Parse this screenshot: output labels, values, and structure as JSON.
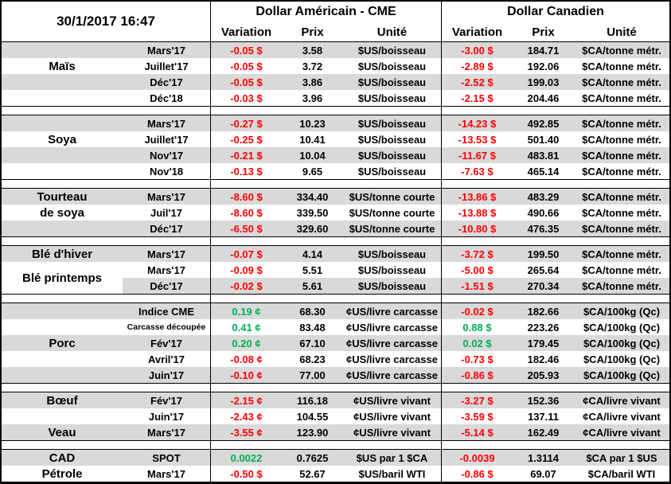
{
  "header": {
    "datetime": "30/1/2017 16:47",
    "usd_group": "Dollar Américain - CME",
    "cad_group": "Dollar Canadien",
    "col_variation": "Variation",
    "col_prix": "Prix",
    "col_unite": "Unité"
  },
  "colors": {
    "positive": "#00B050",
    "negative": "#FF0000",
    "stripe": "#D9D9D9",
    "border": "#000000"
  },
  "sections": [
    {
      "id": "mais",
      "labels": [
        {
          "text": "Maïs",
          "row": 1,
          "span": 1
        }
      ],
      "rows": [
        {
          "month": "Mars'17",
          "us_var": "-0.05 $",
          "us_trend": "down",
          "us_prix": "3.58",
          "us_unit": "$US/boisseau",
          "ca_var": "-3.00 $",
          "ca_trend": "down",
          "ca_prix": "184.71",
          "ca_unit": "$CA/tonne métr."
        },
        {
          "month": "Juillet'17",
          "us_var": "-0.05 $",
          "us_trend": "down",
          "us_prix": "3.72",
          "us_unit": "$US/boisseau",
          "ca_var": "-2.89 $",
          "ca_trend": "down",
          "ca_prix": "192.06",
          "ca_unit": "$CA/tonne métr."
        },
        {
          "month": "Déc'17",
          "us_var": "-0.05 $",
          "us_trend": "down",
          "us_prix": "3.86",
          "us_unit": "$US/boisseau",
          "ca_var": "-2.52 $",
          "ca_trend": "down",
          "ca_prix": "199.03",
          "ca_unit": "$CA/tonne métr."
        },
        {
          "month": "Déc'18",
          "us_var": "-0.03 $",
          "us_trend": "down",
          "us_prix": "3.96",
          "us_unit": "$US/boisseau",
          "ca_var": "-2.15 $",
          "ca_trend": "down",
          "ca_prix": "204.46",
          "ca_unit": "$CA/tonne métr."
        }
      ]
    },
    {
      "id": "soya",
      "labels": [
        {
          "text": "Soya",
          "row": 1,
          "span": 1
        }
      ],
      "rows": [
        {
          "month": "Mars'17",
          "us_var": "-0.27 $",
          "us_trend": "down",
          "us_prix": "10.23",
          "us_unit": "$US/boisseau",
          "ca_var": "-14.23 $",
          "ca_trend": "down",
          "ca_prix": "492.85",
          "ca_unit": "$CA/tonne métr."
        },
        {
          "month": "Juillet'17",
          "us_var": "-0.25 $",
          "us_trend": "down",
          "us_prix": "10.41",
          "us_unit": "$US/boisseau",
          "ca_var": "-13.53 $",
          "ca_trend": "down",
          "ca_prix": "501.40",
          "ca_unit": "$CA/tonne métr."
        },
        {
          "month": "Nov'17",
          "us_var": "-0.21 $",
          "us_trend": "down",
          "us_prix": "10.04",
          "us_unit": "$US/boisseau",
          "ca_var": "-11.67 $",
          "ca_trend": "down",
          "ca_prix": "483.81",
          "ca_unit": "$CA/tonne métr."
        },
        {
          "month": "Nov'18",
          "us_var": "-0.13 $",
          "us_trend": "down",
          "us_prix": "9.65",
          "us_unit": "$US/boisseau",
          "ca_var": "-7.63 $",
          "ca_trend": "down",
          "ca_prix": "465.14",
          "ca_unit": "$CA/tonne métr."
        }
      ]
    },
    {
      "id": "tourteau-de-soya",
      "labels": [
        {
          "text": "Tourteau",
          "row": 0,
          "span": 1
        },
        {
          "text": "de soya",
          "row": 1,
          "span": 1
        }
      ],
      "rows": [
        {
          "month": "Mars'17",
          "us_var": "-8.60 $",
          "us_trend": "down",
          "us_prix": "334.40",
          "us_unit": "$US/tonne courte",
          "ca_var": "-13.86 $",
          "ca_trend": "down",
          "ca_prix": "483.29",
          "ca_unit": "$CA/tonne métr."
        },
        {
          "month": "Juil'17",
          "us_var": "-8.60 $",
          "us_trend": "down",
          "us_prix": "339.50",
          "us_unit": "$US/tonne courte",
          "ca_var": "-13.88 $",
          "ca_trend": "down",
          "ca_prix": "490.66",
          "ca_unit": "$CA/tonne métr."
        },
        {
          "month": "Déc'17",
          "us_var": "-6.50 $",
          "us_trend": "down",
          "us_prix": "329.60",
          "us_unit": "$US/tonne courte",
          "ca_var": "-10.80 $",
          "ca_trend": "down",
          "ca_prix": "476.35",
          "ca_unit": "$CA/tonne métr."
        }
      ]
    },
    {
      "id": "ble",
      "labels": [
        {
          "text": "Blé d'hiver",
          "row": 0,
          "span": 1
        },
        {
          "text": "Blé printemps",
          "row": 1,
          "span": 2
        }
      ],
      "rows": [
        {
          "month": "Mars'17",
          "us_var": "-0.07 $",
          "us_trend": "down",
          "us_prix": "4.14",
          "us_unit": "$US/boisseau",
          "ca_var": "-3.72 $",
          "ca_trend": "down",
          "ca_prix": "199.50",
          "ca_unit": "$CA/tonne métr."
        },
        {
          "month": "Mars'17",
          "us_var": "-0.09 $",
          "us_trend": "down",
          "us_prix": "5.51",
          "us_unit": "$US/boisseau",
          "ca_var": "-5.00 $",
          "ca_trend": "down",
          "ca_prix": "265.64",
          "ca_unit": "$CA/tonne métr."
        },
        {
          "month": "Déc'17",
          "us_var": "-0.02 $",
          "us_trend": "down",
          "us_prix": "5.61",
          "us_unit": "$US/boisseau",
          "ca_var": "-1.51 $",
          "ca_trend": "down",
          "ca_prix": "270.34",
          "ca_unit": "$CA/tonne métr."
        }
      ]
    },
    {
      "id": "porc",
      "labels": [
        {
          "text": "Porc",
          "row": 2,
          "span": 1
        }
      ],
      "rows": [
        {
          "month": "Indice CME",
          "us_var": "0.19 ¢",
          "us_trend": "up",
          "us_prix": "68.30",
          "us_unit": "¢US/livre carcasse",
          "ca_var": "-0.02 $",
          "ca_trend": "down",
          "ca_prix": "182.66",
          "ca_unit": "$CA/100kg (Qc)"
        },
        {
          "month": "Carcasse découpée",
          "month_small": true,
          "us_var": "0.41 ¢",
          "us_trend": "up",
          "us_prix": "83.48",
          "us_unit": "¢US/livre carcasse",
          "ca_var": "0.88 $",
          "ca_trend": "up",
          "ca_prix": "223.26",
          "ca_unit": "$CA/100kg (Qc)"
        },
        {
          "month": "Fév'17",
          "us_var": "0.20 ¢",
          "us_trend": "up",
          "us_prix": "67.10",
          "us_unit": "¢US/livre carcasse",
          "ca_var": "0.02 $",
          "ca_trend": "up",
          "ca_prix": "179.45",
          "ca_unit": "$CA/100kg (Qc)"
        },
        {
          "month": "Avril'17",
          "us_var": "-0.08 ¢",
          "us_trend": "down",
          "us_prix": "68.23",
          "us_unit": "¢US/livre carcasse",
          "ca_var": "-0.73 $",
          "ca_trend": "down",
          "ca_prix": "182.46",
          "ca_unit": "$CA/100kg (Qc)"
        },
        {
          "month": "Juin'17",
          "us_var": "-0.10 ¢",
          "us_trend": "down",
          "us_prix": "77.00",
          "us_unit": "¢US/livre carcasse",
          "ca_var": "-0.86 $",
          "ca_trend": "down",
          "ca_prix": "205.93",
          "ca_unit": "$CA/100kg (Qc)"
        }
      ]
    },
    {
      "id": "boeuf-veau",
      "labels": [
        {
          "text": "Bœuf",
          "row": 0,
          "span": 1
        },
        {
          "text": "Veau",
          "row": 2,
          "span": 1
        }
      ],
      "rows": [
        {
          "month": "Fév'17",
          "us_var": "-2.15 ¢",
          "us_trend": "down",
          "us_prix": "116.18",
          "us_unit": "¢US/livre vivant",
          "ca_var": "-3.27 $",
          "ca_trend": "down",
          "ca_prix": "152.36",
          "ca_unit": "¢CA/livre vivant"
        },
        {
          "month": "Juin'17",
          "us_var": "-2.43 ¢",
          "us_trend": "down",
          "us_prix": "104.55",
          "us_unit": "¢US/livre vivant",
          "ca_var": "-3.59 $",
          "ca_trend": "down",
          "ca_prix": "137.11",
          "ca_unit": "¢CA/livre vivant"
        },
        {
          "month": "Mars'17",
          "us_var": "-3.55 ¢",
          "us_trend": "down",
          "us_prix": "123.90",
          "us_unit": "¢US/livre vivant",
          "ca_var": "-5.14 $",
          "ca_trend": "down",
          "ca_prix": "162.49",
          "ca_unit": "¢CA/livre vivant"
        }
      ]
    },
    {
      "id": "cad-petrole",
      "labels": [
        {
          "text": "CAD",
          "row": 0,
          "span": 1
        },
        {
          "text": "Pétrole",
          "row": 1,
          "span": 1
        }
      ],
      "rows": [
        {
          "month": "SPOT",
          "us_var": "0.0022",
          "us_trend": "up",
          "us_prix": "0.7625",
          "us_unit": "$US par 1 $CA",
          "ca_var": "-0.0039",
          "ca_trend": "down",
          "ca_prix": "1.3114",
          "ca_unit": "$CA par 1 $US"
        },
        {
          "month": "Mars'17",
          "us_var": "-0.50 $",
          "us_trend": "down",
          "us_prix": "52.67",
          "us_unit": "$US/baril WTI",
          "ca_var": "-0.86 $",
          "ca_trend": "down",
          "ca_prix": "69.07",
          "ca_unit": "$CA/baril WTI"
        }
      ]
    }
  ]
}
